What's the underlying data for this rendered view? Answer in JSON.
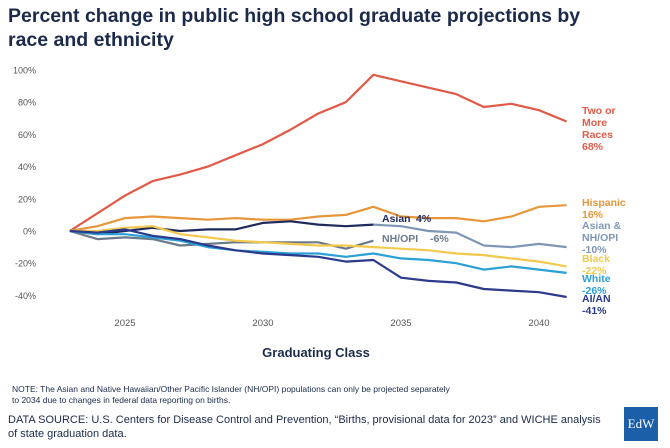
{
  "chart_data": {
    "type": "line",
    "title": "Percent change in public high school graduate projections by race and ethnicity",
    "x_label": "Graduating Class",
    "note": "NOTE: The Asian and Native Hawaiian/Other Pacific Islander (NH/OPI) populations can only be projected separately to 2034 due to changes in federal data reporting on births.",
    "source": "DATA SOURCE: U.S. Centers for Disease Control and Prevention, “Births, provisional data for 2023” and WICHE analysis of state graduation data.",
    "logo": "EdW",
    "x": [
      2023,
      2024,
      2025,
      2026,
      2027,
      2028,
      2029,
      2030,
      2031,
      2032,
      2033,
      2034,
      2035,
      2036,
      2037,
      2038,
      2039,
      2040,
      2041
    ],
    "xlim": [
      2022,
      2043
    ],
    "xticks": [
      2025,
      2030,
      2035,
      2040
    ],
    "ylim": [
      -50,
      110
    ],
    "yticks": [
      {
        "value": -40,
        "label": "-40%"
      },
      {
        "value": -20,
        "label": "-20%"
      },
      {
        "value": 0,
        "label": "0%"
      },
      {
        "value": 20,
        "label": "20%"
      },
      {
        "value": 40,
        "label": "40%"
      },
      {
        "value": 60,
        "label": "60%"
      },
      {
        "value": 80,
        "label": "80%"
      },
      {
        "value": 100,
        "label": "100%"
      }
    ],
    "series": [
      {
        "name": "Two or More Races",
        "color": "#e05a47",
        "values": [
          0,
          11,
          22,
          31,
          35,
          40,
          47,
          54,
          63,
          73,
          80,
          97,
          93,
          89,
          85,
          77,
          79,
          75,
          68
        ],
        "value_labels": [
          null,
          null,
          null,
          null,
          null,
          null,
          null,
          null,
          null,
          null,
          null,
          null,
          null,
          null,
          null,
          null,
          null,
          null,
          "68%"
        ]
      },
      {
        "name": "Hispanic",
        "color": "#e8963a",
        "values": [
          0,
          3,
          8,
          9,
          8,
          7,
          8,
          7,
          7,
          9,
          10,
          15,
          9,
          8,
          8,
          6,
          9,
          15,
          16
        ],
        "value_labels": [
          null,
          null,
          null,
          null,
          null,
          null,
          null,
          null,
          null,
          null,
          null,
          null,
          null,
          null,
          null,
          null,
          null,
          null,
          "16%"
        ]
      },
      {
        "name": "Asian",
        "color": "#1f2a5c",
        "values": [
          0,
          -2,
          0,
          2,
          0,
          1,
          1,
          5,
          6,
          4,
          3,
          4,
          null,
          null,
          null,
          null,
          null,
          null,
          null
        ],
        "value_labels": [
          null,
          null,
          null,
          null,
          null,
          null,
          null,
          null,
          null,
          null,
          null,
          "4%",
          null,
          null,
          null,
          null,
          null,
          null,
          null
        ]
      },
      {
        "name": "Asian & NH/OPI",
        "color": "#7f97b5",
        "values": [
          null,
          null,
          null,
          null,
          null,
          null,
          null,
          null,
          null,
          null,
          null,
          4,
          3,
          0,
          -1,
          -9,
          -10,
          -8,
          -10
        ],
        "value_labels": [
          null,
          null,
          null,
          null,
          null,
          null,
          null,
          null,
          null,
          null,
          null,
          null,
          null,
          null,
          null,
          null,
          null,
          null,
          "-10%"
        ]
      },
      {
        "name": "NH/OPI",
        "color": "#6b7a8a",
        "values": [
          0,
          -5,
          -4,
          -5,
          -9,
          -8,
          -7,
          -7,
          -7,
          -7,
          -11,
          -6,
          null,
          null,
          null,
          null,
          null,
          null,
          null
        ],
        "value_labels": [
          null,
          null,
          null,
          null,
          null,
          null,
          null,
          null,
          null,
          null,
          null,
          "-6%",
          null,
          null,
          null,
          null,
          null,
          null,
          null
        ]
      },
      {
        "name": "Black",
        "color": "#f2c94c",
        "values": [
          0,
          0,
          2,
          3,
          -2,
          -4,
          -6,
          -7,
          -8,
          -9,
          -9,
          -10,
          -11,
          -12,
          -14,
          -15,
          -17,
          -19,
          -22
        ],
        "value_labels": [
          null,
          null,
          null,
          null,
          null,
          null,
          null,
          null,
          null,
          null,
          null,
          null,
          null,
          null,
          null,
          null,
          null,
          null,
          "-22%"
        ]
      },
      {
        "name": "White",
        "color": "#2aa0d6",
        "values": [
          0,
          -2,
          -2,
          -4,
          -6,
          -10,
          -12,
          -13,
          -14,
          -14,
          -16,
          -14,
          -17,
          -18,
          -20,
          -24,
          -22,
          -24,
          -26
        ],
        "value_labels": [
          null,
          null,
          null,
          null,
          null,
          null,
          null,
          null,
          null,
          null,
          null,
          null,
          null,
          null,
          null,
          null,
          null,
          null,
          "-26%"
        ]
      },
      {
        "name": "AI/AN",
        "color": "#2b3a8c",
        "values": [
          0,
          -1,
          1,
          -3,
          -5,
          -9,
          -12,
          -14,
          -15,
          -16,
          -19,
          -18,
          -29,
          -31,
          -32,
          -36,
          -37,
          -38,
          -41
        ],
        "value_labels": [
          null,
          null,
          null,
          null,
          null,
          null,
          null,
          null,
          null,
          null,
          null,
          null,
          null,
          null,
          null,
          null,
          null,
          null,
          "-41%"
        ]
      }
    ]
  }
}
